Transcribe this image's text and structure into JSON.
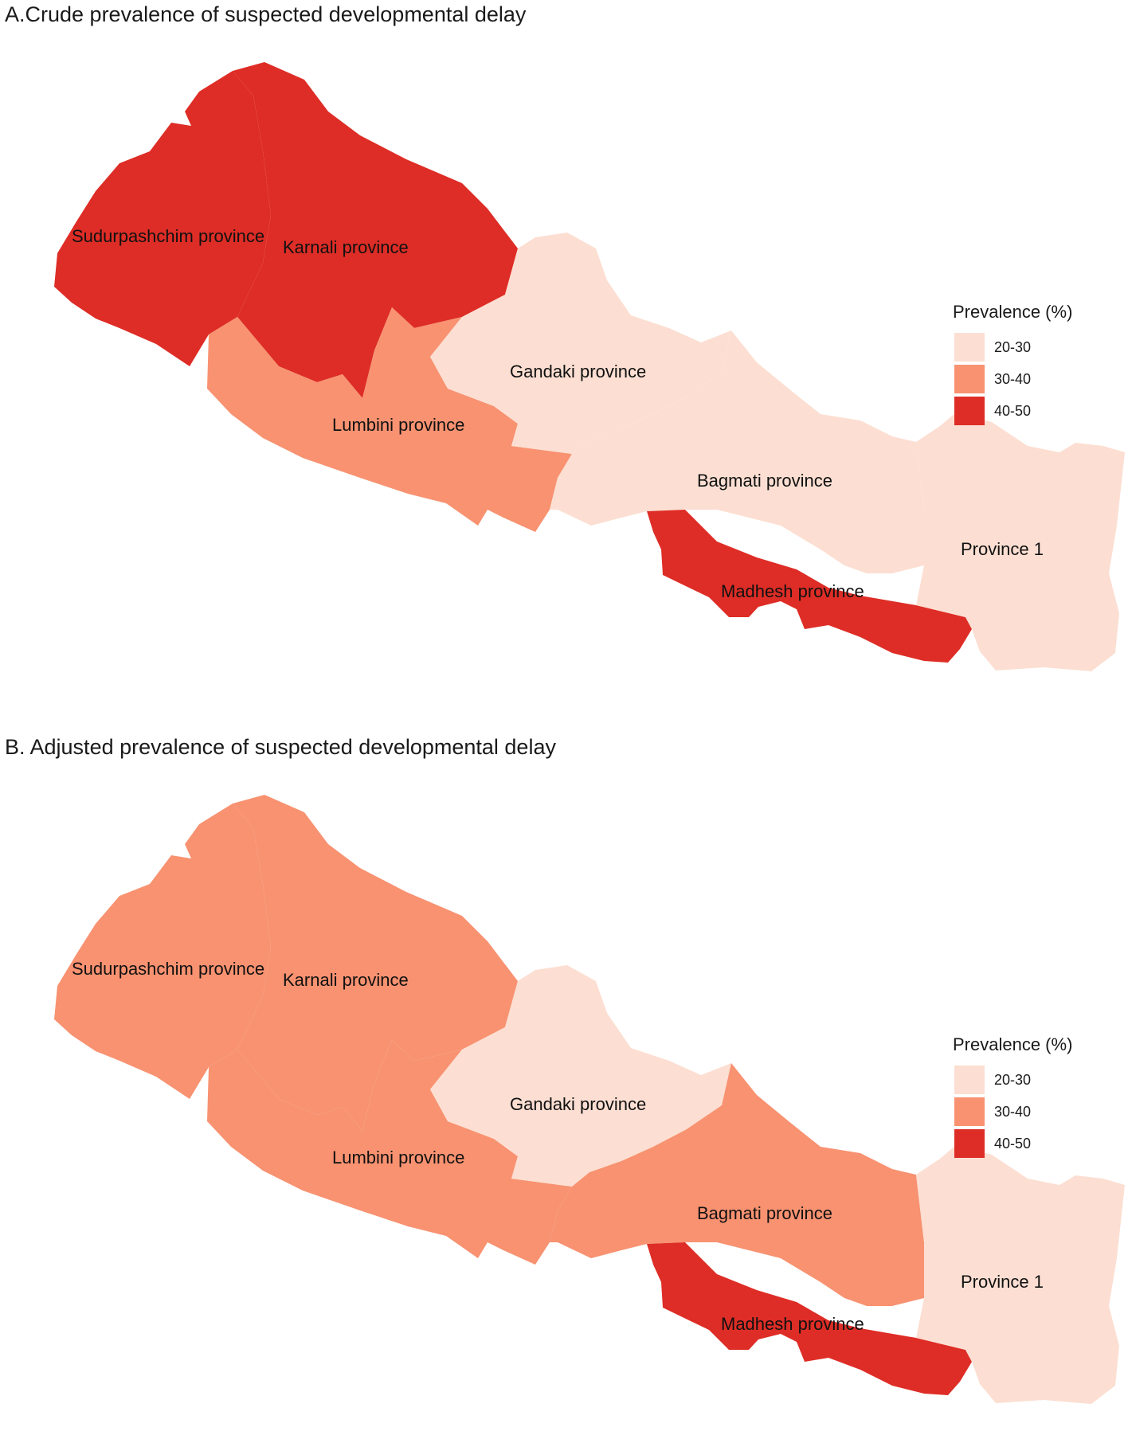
{
  "colors": {
    "20-30": "#fcdfd2",
    "30-40": "#f89271",
    "40-50": "#de2d26"
  },
  "legend": {
    "title": "Prevalence (%)",
    "items": [
      {
        "label": "20-30",
        "color": "#fcdfd2"
      },
      {
        "label": "30-40",
        "color": "#f89271"
      },
      {
        "label": "40-50",
        "color": "#de2d26"
      }
    ]
  },
  "panels": [
    {
      "title": "A.Crude prevalence of suspected developmental delay",
      "provinces": [
        {
          "name": "Sudurpashchim province",
          "category": "40-50"
        },
        {
          "name": "Karnali province",
          "category": "40-50"
        },
        {
          "name": "Lumbini province",
          "category": "30-40"
        },
        {
          "name": "Gandaki province",
          "category": "20-30"
        },
        {
          "name": "Bagmati province",
          "category": "20-30"
        },
        {
          "name": "Madhesh province",
          "category": "40-50"
        },
        {
          "name": "Province 1",
          "category": "20-30"
        }
      ]
    },
    {
      "title": "B. Adjusted prevalence of suspected developmental delay",
      "provinces": [
        {
          "name": "Sudurpashchim province",
          "category": "30-40"
        },
        {
          "name": "Karnali province",
          "category": "30-40"
        },
        {
          "name": "Lumbini province",
          "category": "30-40"
        },
        {
          "name": "Gandaki province",
          "category": "20-30"
        },
        {
          "name": "Bagmati province",
          "category": "30-40"
        },
        {
          "name": "Madhesh province",
          "category": "40-50"
        },
        {
          "name": "Province 1",
          "category": "20-30"
        }
      ]
    }
  ]
}
